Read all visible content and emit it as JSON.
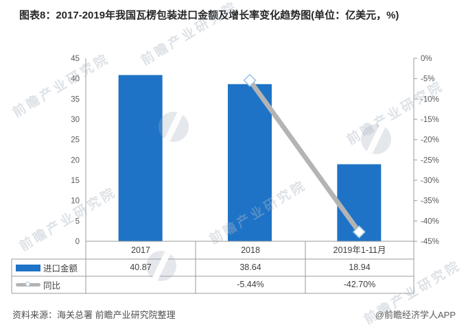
{
  "title": "图表8：2017-2019年我国瓦楞包装进口金额及增长率变化趋势图(单位：亿美元，%)",
  "chart_data": {
    "type": "bar",
    "combo": [
      "bar",
      "line"
    ],
    "title": "图表8：2017-2019年我国瓦楞包装进口金额及增长率变化趋势图(单位：亿美元，%)",
    "categories": [
      "2017",
      "2018",
      "2019年1-11月"
    ],
    "series": [
      {
        "name": "进口金额",
        "type": "bar",
        "axis": "left",
        "values": [
          40.87,
          38.64,
          18.94
        ]
      },
      {
        "name": "同比",
        "type": "line",
        "axis": "right",
        "values": [
          null,
          -5.44,
          -42.7
        ]
      }
    ],
    "left_axis": {
      "min": 0,
      "max": 45,
      "step": 5
    },
    "right_axis": {
      "min": -45,
      "max": 0,
      "step": 5,
      "ticks": [
        "0%",
        "-5%",
        "-10%",
        "-15%",
        "-20%",
        "-25%",
        "-30%",
        "-35%",
        "-40%",
        "-45%"
      ]
    },
    "grid": false,
    "legend_position": "table-left"
  },
  "table": {
    "categories": [
      "2017",
      "2018",
      "2019年1-11月"
    ],
    "rows": [
      {
        "legend": "进口金额",
        "values": [
          "40.87",
          "38.64",
          "18.94"
        ]
      },
      {
        "legend": "同比",
        "values": [
          "",
          "-5.44%",
          "-42.70%"
        ]
      }
    ]
  },
  "footer": {
    "source": "资料来源：海关总署 前瞻产业研究院整理",
    "credit": "@前瞻经济学人APP"
  },
  "watermark": {
    "text": "前瞻产业研究院"
  },
  "colors": {
    "bar": "#1E73C6",
    "line": "#B4B4B4",
    "marker_fill": "#FFFFFF",
    "marker_stroke": "#9DC3E6",
    "axis": "#9A9A9A",
    "tick_text": "#595959",
    "body_text": "#404040"
  }
}
